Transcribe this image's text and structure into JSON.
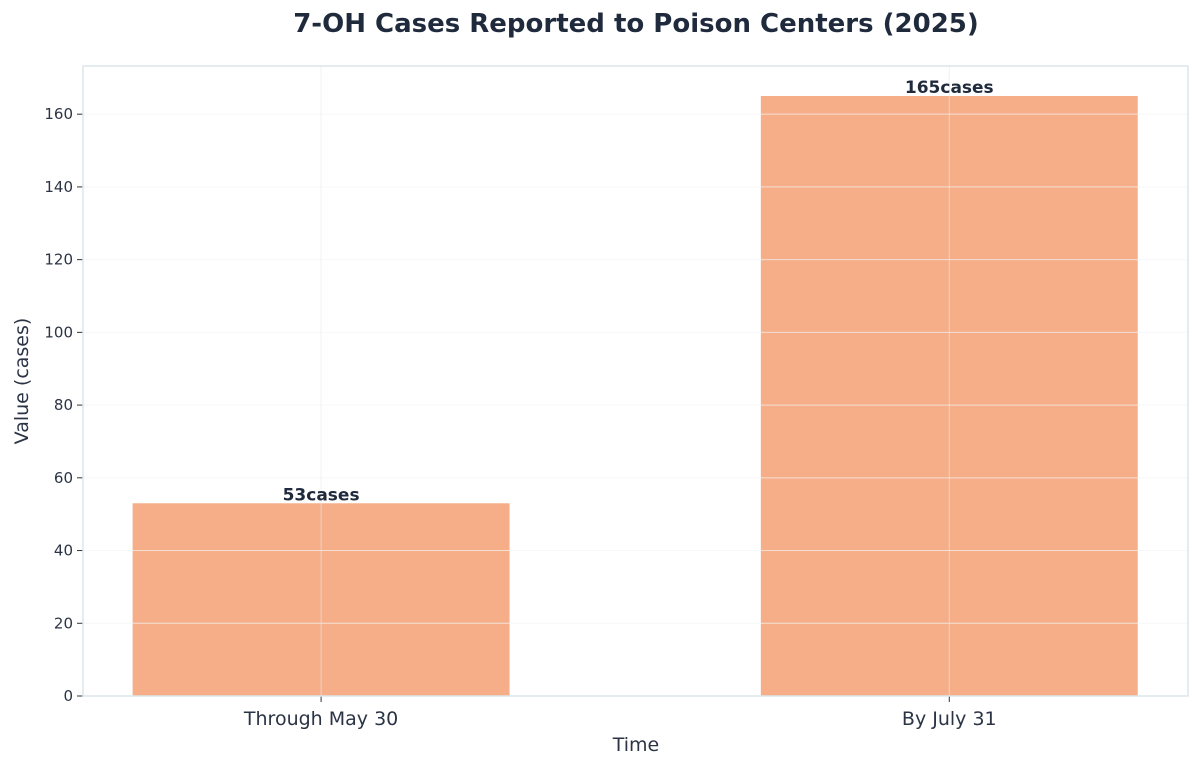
{
  "chart_data": {
    "type": "bar",
    "title": "7-OH Cases Reported to Poison Centers (2025)",
    "xlabel": "Time",
    "ylabel": "Value (cases)",
    "categories": [
      "Through May 30",
      "By July 31"
    ],
    "values": [
      53,
      165
    ],
    "data_labels": [
      "53cases",
      "165cases"
    ],
    "ylim": [
      0,
      173.25
    ],
    "yticks": [
      0,
      20,
      40,
      60,
      80,
      100,
      120,
      140,
      160
    ],
    "grid": true,
    "legend": "none",
    "colors": {
      "bar": "#f6ae88",
      "text": "#1f2a3c",
      "spine": "#dce6ea",
      "grid": "#eef2f4"
    }
  }
}
